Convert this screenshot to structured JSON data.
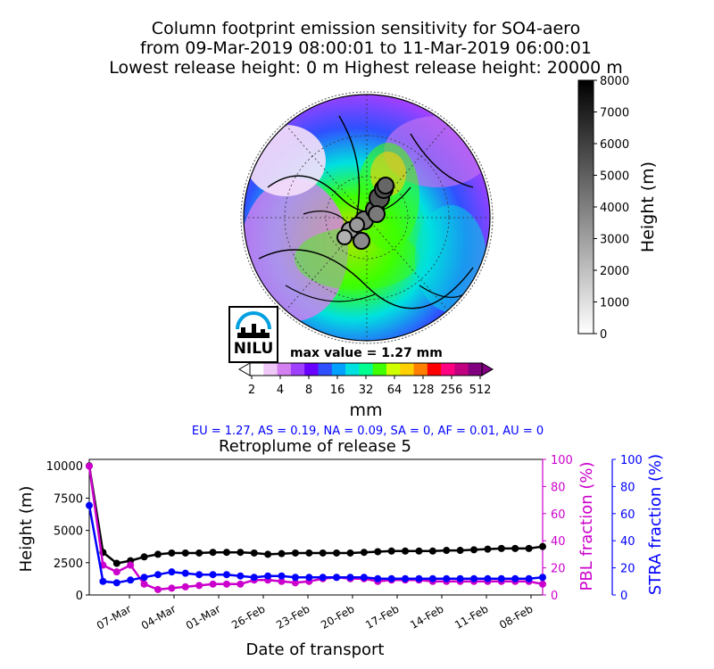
{
  "title": {
    "line1": "Column footprint emission sensitivity for SO4-aero",
    "line2": "from 09-Mar-2019 08:00:01 to 11-Mar-2019 06:00:01",
    "line3": "Lowest release height: 0 m      Highest release height: 20000 m"
  },
  "map": {
    "max_value_text": "max value = 1.27 mm",
    "logo_text": "NILU",
    "colorbar": {
      "label": "mm",
      "ticks": [
        "2",
        "4",
        "8",
        "16",
        "32",
        "64",
        "128",
        "256",
        "512"
      ],
      "colors": [
        "#ffffff",
        "#f0c8f8",
        "#d580f0",
        "#a040ff",
        "#6a00ff",
        "#3050ff",
        "#00a0ff",
        "#00e0e0",
        "#00ff90",
        "#40ff00",
        "#d0ff00",
        "#ffd000",
        "#ff8000",
        "#ff0000",
        "#ff0080",
        "#c00080",
        "#800080"
      ]
    },
    "height_colorbar": {
      "label": "Height (m)",
      "ticks": [
        "0",
        "1000",
        "2000",
        "3000",
        "4000",
        "5000",
        "6000",
        "7000",
        "8000"
      ]
    }
  },
  "region_text": "EU = 1.27,  AS = 0.19,  NA = 0.09,  SA = 0,  AF = 0.01,  AU = 0",
  "chart_data": {
    "type": "line",
    "title": "Retroplume of release 5",
    "xlabel": "Date of transport",
    "ylabel": "Height (m)",
    "y2label": "PBL fraction (%)",
    "y3label": "STRA fraction (%)",
    "x_ticks": [
      "07-Mar",
      "04-Mar",
      "01-Mar",
      "26-Feb",
      "23-Feb",
      "20-Feb",
      "17-Feb",
      "14-Feb",
      "11-Feb",
      "08-Feb"
    ],
    "y_ticks": [
      "0",
      "2500",
      "5000",
      "7500",
      "10000"
    ],
    "y2_ticks": [
      "0",
      "20",
      "40",
      "60",
      "80",
      "100"
    ],
    "y3_ticks": [
      "0",
      "20",
      "40",
      "60",
      "80",
      "100"
    ],
    "ylim": [
      0,
      10500
    ],
    "y2lim": [
      0,
      100
    ],
    "series": [
      {
        "name": "Height",
        "color": "#000000",
        "axis": "left",
        "values": [
          10000,
          3300,
          2450,
          2650,
          2950,
          3150,
          3250,
          3250,
          3250,
          3300,
          3300,
          3300,
          3250,
          3150,
          3200,
          3250,
          3250,
          3250,
          3250,
          3250,
          3300,
          3350,
          3400,
          3400,
          3400,
          3400,
          3450,
          3450,
          3500,
          3550,
          3600,
          3600,
          3600,
          3750
        ]
      },
      {
        "name": "PBL fraction",
        "color": "#cc00cc",
        "axis": "right",
        "values": [
          95,
          22,
          17,
          22,
          8,
          4,
          5,
          6,
          7,
          8,
          8,
          8,
          11,
          11,
          10,
          9,
          10,
          12,
          13,
          12,
          12,
          10,
          11,
          11,
          11,
          10,
          10,
          10,
          10,
          10,
          10,
          10,
          10,
          8
        ]
      },
      {
        "name": "STRA fraction",
        "color": "#0000ff",
        "axis": "right",
        "values": [
          66,
          10,
          9,
          11,
          13,
          15,
          17,
          16,
          15,
          15,
          15,
          14,
          13,
          14,
          14,
          13,
          13,
          13,
          13,
          13,
          13,
          12,
          12,
          12,
          12,
          12,
          12,
          12,
          12,
          12,
          12,
          12,
          12,
          13
        ]
      }
    ]
  }
}
